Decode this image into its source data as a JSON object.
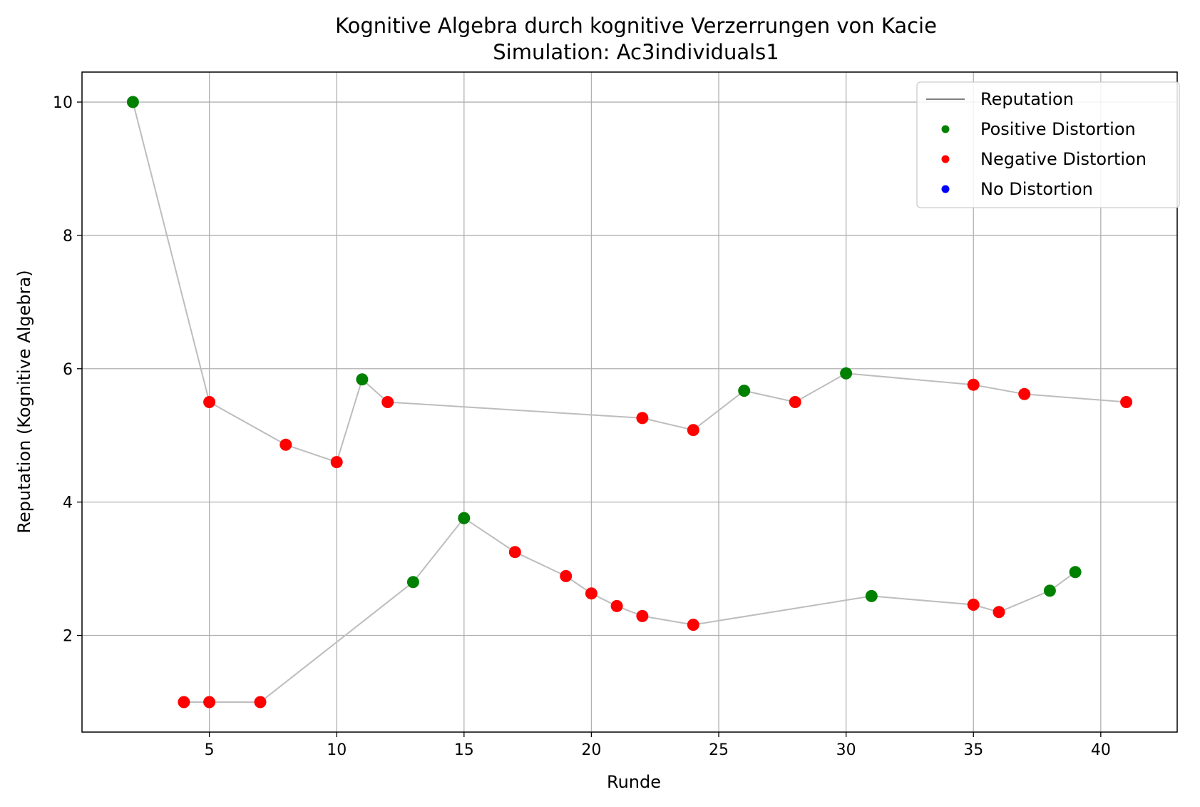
{
  "chart_data": {
    "type": "line",
    "title": "Kognitive Algebra durch kognitive Verzerrungen von Kacie",
    "subtitle": "Simulation: Ac3individuals1",
    "xlabel": "Runde",
    "ylabel": "Reputation (Kognitive Algebra)",
    "xlim": [
      0,
      43
    ],
    "ylim": [
      0.55,
      10.45
    ],
    "xticks": [
      5,
      10,
      15,
      20,
      25,
      30,
      35,
      40
    ],
    "yticks": [
      2,
      4,
      6,
      8,
      10
    ],
    "grid": true,
    "legend_position": "top-right",
    "legend": [
      {
        "label": "Reputation",
        "kind": "line",
        "color": "#808080"
      },
      {
        "label": "Positive Distortion",
        "kind": "marker",
        "color": "#008000"
      },
      {
        "label": "Negative Distortion",
        "kind": "marker",
        "color": "#ff0000"
      },
      {
        "label": "No Distortion",
        "kind": "marker",
        "color": "#0000ff"
      }
    ],
    "colors": {
      "positive": "#008000",
      "negative": "#ff0000",
      "none": "#0000ff",
      "line": "#bdbdbd"
    },
    "series": [
      {
        "x": [
          2,
          5,
          8,
          10,
          11,
          12,
          22,
          24,
          26,
          28,
          30,
          35,
          37,
          41
        ],
        "y": [
          10.0,
          5.5,
          4.86,
          4.6,
          5.84,
          5.5,
          5.26,
          5.08,
          5.67,
          5.5,
          5.93,
          5.76,
          5.62,
          5.5
        ],
        "distortion": [
          "positive",
          "negative",
          "negative",
          "negative",
          "positive",
          "negative",
          "negative",
          "negative",
          "positive",
          "negative",
          "positive",
          "negative",
          "negative",
          "negative"
        ]
      },
      {
        "x": [
          4,
          5,
          7,
          13,
          15,
          17,
          19,
          20,
          21,
          22,
          24,
          31,
          35,
          36,
          38,
          39
        ],
        "y": [
          1.0,
          1.0,
          1.0,
          2.8,
          3.76,
          3.25,
          2.89,
          2.63,
          2.44,
          2.29,
          2.16,
          2.59,
          2.46,
          2.35,
          2.67,
          2.95
        ],
        "distortion": [
          "negative",
          "negative",
          "negative",
          "positive",
          "positive",
          "negative",
          "negative",
          "negative",
          "negative",
          "negative",
          "negative",
          "positive",
          "negative",
          "negative",
          "positive",
          "positive"
        ]
      }
    ]
  }
}
